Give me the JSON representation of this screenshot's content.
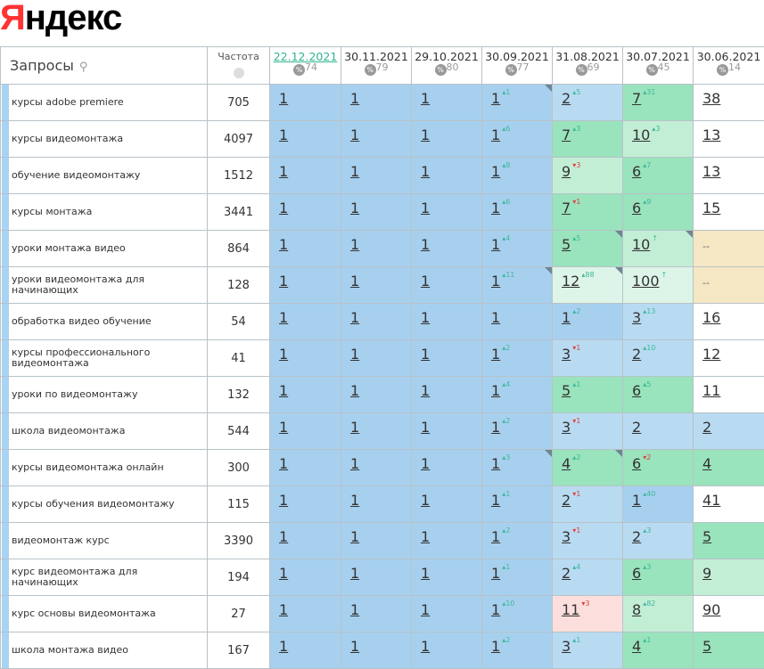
{
  "logo": "Яндекс",
  "header": {
    "queries": "Запросы",
    "frequency": "Частота",
    "dates": [
      {
        "date": "22.12.2021",
        "pct": "74",
        "active": true
      },
      {
        "date": "30.11.2021",
        "pct": "79"
      },
      {
        "date": "29.10.2021",
        "pct": "80"
      },
      {
        "date": "30.09.2021",
        "pct": "77"
      },
      {
        "date": "31.08.2021",
        "pct": "69"
      },
      {
        "date": "30.07.2021",
        "pct": "45"
      },
      {
        "date": "30.06.2021",
        "pct": "14"
      }
    ]
  },
  "colors": {
    "accent": "#2db593",
    "up": "#3cb89a",
    "down": "#e04040",
    "blue": "#a7d0ef",
    "green": "#99e3bd",
    "tan": "#f5e7c4",
    "pink": "#fcdfdd"
  },
  "rows": [
    {
      "q": "курсы adobe premiere",
      "f": "705",
      "c": [
        [
          "1",
          "",
          "b1"
        ],
        [
          "1",
          "",
          "b1"
        ],
        [
          "1",
          "",
          "b1"
        ],
        [
          "1",
          "▴1",
          "b1",
          1
        ],
        [
          "2",
          "▴5",
          "b2"
        ],
        [
          "7",
          "▴31",
          "g1"
        ],
        [
          "38",
          "",
          "w"
        ]
      ]
    },
    {
      "q": "курсы видеомонтажа",
      "f": "4097",
      "c": [
        [
          "1",
          "",
          "b1"
        ],
        [
          "1",
          "",
          "b1"
        ],
        [
          "1",
          "",
          "b1"
        ],
        [
          "1",
          "▴6",
          "b1"
        ],
        [
          "7",
          "▴3",
          "g1"
        ],
        [
          "10",
          "▴3",
          "g2"
        ],
        [
          "13",
          "",
          "w"
        ]
      ]
    },
    {
      "q": "обучение видеомонтажу",
      "f": "1512",
      "c": [
        [
          "1",
          "",
          "b1"
        ],
        [
          "1",
          "",
          "b1"
        ],
        [
          "1",
          "",
          "b1"
        ],
        [
          "1",
          "▴8",
          "b1"
        ],
        [
          "9",
          "▾3",
          "g2"
        ],
        [
          "6",
          "▴7",
          "g1"
        ],
        [
          "13",
          "",
          "w"
        ]
      ]
    },
    {
      "q": "курсы монтажа",
      "f": "3441",
      "c": [
        [
          "1",
          "",
          "b1"
        ],
        [
          "1",
          "",
          "b1"
        ],
        [
          "1",
          "",
          "b1"
        ],
        [
          "1",
          "▴6",
          "b1"
        ],
        [
          "7",
          "▾1",
          "g1"
        ],
        [
          "6",
          "▴9",
          "g1"
        ],
        [
          "15",
          "",
          "w"
        ]
      ]
    },
    {
      "q": "уроки монтажа видео",
      "f": "864",
      "c": [
        [
          "1",
          "",
          "b1"
        ],
        [
          "1",
          "",
          "b1"
        ],
        [
          "1",
          "",
          "b1"
        ],
        [
          "1",
          "▴4",
          "b1"
        ],
        [
          "5",
          "▴5",
          "g1",
          1
        ],
        [
          "10",
          "↑",
          "g2",
          1
        ],
        [
          "--",
          "",
          "y"
        ]
      ]
    },
    {
      "q": "уроки видеомонтажа для начинающих",
      "f": "128",
      "c": [
        [
          "1",
          "",
          "b1"
        ],
        [
          "1",
          "",
          "b1"
        ],
        [
          "1",
          "",
          "b1"
        ],
        [
          "1",
          "▴11",
          "b1",
          1
        ],
        [
          "12",
          "▴88",
          "g3",
          1
        ],
        [
          "100",
          "↑",
          "g3"
        ],
        [
          "--",
          "",
          "y"
        ]
      ]
    },
    {
      "q": "обработка видео обучение",
      "f": "54",
      "c": [
        [
          "1",
          "",
          "b1"
        ],
        [
          "1",
          "",
          "b1"
        ],
        [
          "1",
          "",
          "b1"
        ],
        [
          "1",
          "",
          "b1"
        ],
        [
          "1",
          "▴2",
          "b1"
        ],
        [
          "3",
          "▴13",
          "b2"
        ],
        [
          "16",
          "",
          "w"
        ]
      ]
    },
    {
      "q": "курсы профессионального видеомонтажа",
      "f": "41",
      "c": [
        [
          "1",
          "",
          "b1"
        ],
        [
          "1",
          "",
          "b1"
        ],
        [
          "1",
          "",
          "b1"
        ],
        [
          "1",
          "▴2",
          "b1"
        ],
        [
          "3",
          "▾1",
          "b2"
        ],
        [
          "2",
          "▴10",
          "b2"
        ],
        [
          "12",
          "",
          "w"
        ]
      ]
    },
    {
      "q": "уроки по видеомонтажу",
      "f": "132",
      "c": [
        [
          "1",
          "",
          "b1"
        ],
        [
          "1",
          "",
          "b1"
        ],
        [
          "1",
          "",
          "b1"
        ],
        [
          "1",
          "▴4",
          "b1"
        ],
        [
          "5",
          "▴1",
          "g1"
        ],
        [
          "6",
          "▴5",
          "g1"
        ],
        [
          "11",
          "",
          "w"
        ]
      ]
    },
    {
      "q": "школа видеомонтажа",
      "f": "544",
      "c": [
        [
          "1",
          "",
          "b1"
        ],
        [
          "1",
          "",
          "b1"
        ],
        [
          "1",
          "",
          "b1"
        ],
        [
          "1",
          "▴2",
          "b1"
        ],
        [
          "3",
          "▾1",
          "b2"
        ],
        [
          "2",
          "",
          "b2"
        ],
        [
          "2",
          "",
          "b2"
        ]
      ]
    },
    {
      "q": "курсы видеомонтажа онлайн",
      "f": "300",
      "c": [
        [
          "1",
          "",
          "b1"
        ],
        [
          "1",
          "",
          "b1"
        ],
        [
          "1",
          "",
          "b1"
        ],
        [
          "1",
          "▴3",
          "b1",
          1
        ],
        [
          "4",
          "▴2",
          "g1",
          1
        ],
        [
          "6",
          "▾2",
          "g1"
        ],
        [
          "4",
          "",
          "g1"
        ]
      ]
    },
    {
      "q": "курсы обучения видеомонтажу",
      "f": "115",
      "c": [
        [
          "1",
          "",
          "b1"
        ],
        [
          "1",
          "",
          "b1"
        ],
        [
          "1",
          "",
          "b1"
        ],
        [
          "1",
          "▴1",
          "b1"
        ],
        [
          "2",
          "▾1",
          "b2"
        ],
        [
          "1",
          "▴40",
          "b1"
        ],
        [
          "41",
          "",
          "w"
        ]
      ]
    },
    {
      "q": "видеомонтаж курс",
      "f": "3390",
      "c": [
        [
          "1",
          "",
          "b1"
        ],
        [
          "1",
          "",
          "b1"
        ],
        [
          "1",
          "",
          "b1"
        ],
        [
          "1",
          "▴2",
          "b1"
        ],
        [
          "3",
          "▾1",
          "b2"
        ],
        [
          "2",
          "▴3",
          "b2"
        ],
        [
          "5",
          "",
          "g1"
        ]
      ]
    },
    {
      "q": "курс видеомонтажа для начинающих",
      "f": "194",
      "c": [
        [
          "1",
          "",
          "b1"
        ],
        [
          "1",
          "",
          "b1"
        ],
        [
          "1",
          "",
          "b1"
        ],
        [
          "1",
          "▴1",
          "b1"
        ],
        [
          "2",
          "▴4",
          "b2"
        ],
        [
          "6",
          "▴3",
          "g1"
        ],
        [
          "9",
          "",
          "g2"
        ]
      ]
    },
    {
      "q": "курс основы видеомонтажа",
      "f": "27",
      "c": [
        [
          "1",
          "",
          "b1"
        ],
        [
          "1",
          "",
          "b1"
        ],
        [
          "1",
          "",
          "b1"
        ],
        [
          "1",
          "▴10",
          "b1"
        ],
        [
          "11",
          "▾3",
          "p"
        ],
        [
          "8",
          "▴82",
          "g2"
        ],
        [
          "90",
          "",
          "w"
        ]
      ]
    },
    {
      "q": "школа монтажа видео",
      "f": "167",
      "c": [
        [
          "1",
          "",
          "b1"
        ],
        [
          "1",
          "",
          "b1"
        ],
        [
          "1",
          "",
          "b1"
        ],
        [
          "1",
          "▴2",
          "b1"
        ],
        [
          "3",
          "▴1",
          "b2"
        ],
        [
          "4",
          "▴1",
          "g1"
        ],
        [
          "5",
          "",
          "g1"
        ]
      ]
    }
  ]
}
